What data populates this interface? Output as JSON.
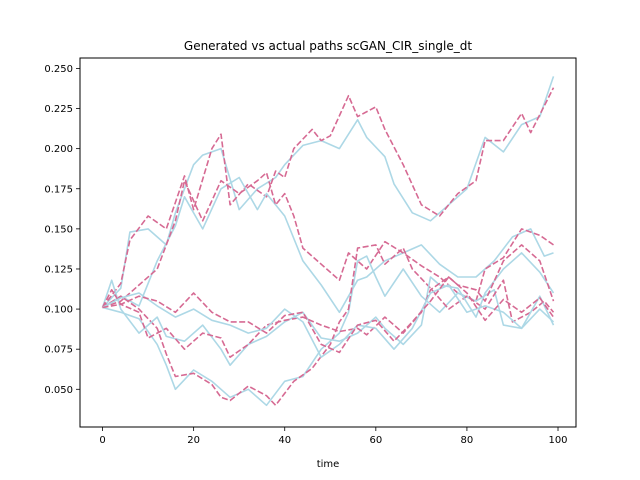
{
  "chart_data": {
    "type": "line",
    "title": "Generated vs actual paths scGAN_CIR_single_dt",
    "xlabel": "time",
    "ylabel": "",
    "xlim": [
      -4.95,
      103.95
    ],
    "ylim": [
      0.0265,
      0.2565
    ],
    "x_ticks": [
      0,
      20,
      40,
      60,
      80,
      100
    ],
    "y_ticks": [
      0.05,
      0.075,
      0.1,
      0.125,
      0.15,
      0.175,
      0.2,
      0.225,
      0.25
    ],
    "x_tick_labels": [
      "0",
      "20",
      "40",
      "60",
      "80",
      "100"
    ],
    "y_tick_labels": [
      "0.050",
      "0.075",
      "0.100",
      "0.125",
      "0.150",
      "0.175",
      "0.200",
      "0.225",
      "0.250"
    ],
    "grid": false,
    "legend": "none",
    "series": [
      {
        "style": "solid",
        "color": "#add8e6",
        "points": [
          [
            0,
            0.101
          ],
          [
            4,
            0.113
          ],
          [
            6,
            0.148
          ],
          [
            10,
            0.15
          ],
          [
            14,
            0.14
          ],
          [
            16,
            0.16
          ],
          [
            20,
            0.19
          ],
          [
            22,
            0.196
          ],
          [
            26,
            0.2
          ],
          [
            30,
            0.162
          ],
          [
            34,
            0.175
          ],
          [
            38,
            0.182
          ],
          [
            40,
            0.19
          ],
          [
            44,
            0.202
          ],
          [
            48,
            0.205
          ],
          [
            52,
            0.2
          ],
          [
            56,
            0.218
          ],
          [
            58,
            0.207
          ],
          [
            62,
            0.195
          ],
          [
            64,
            0.178
          ],
          [
            68,
            0.16
          ],
          [
            72,
            0.155
          ],
          [
            76,
            0.165
          ],
          [
            80,
            0.175
          ],
          [
            84,
            0.207
          ],
          [
            88,
            0.198
          ],
          [
            92,
            0.215
          ],
          [
            96,
            0.22
          ],
          [
            99,
            0.245
          ]
        ]
      },
      {
        "style": "dashed",
        "color": "#d66a93",
        "points": [
          [
            0,
            0.101
          ],
          [
            4,
            0.116
          ],
          [
            6,
            0.143
          ],
          [
            10,
            0.158
          ],
          [
            14,
            0.15
          ],
          [
            18,
            0.183
          ],
          [
            20,
            0.162
          ],
          [
            24,
            0.2
          ],
          [
            26,
            0.209
          ],
          [
            28,
            0.165
          ],
          [
            32,
            0.178
          ],
          [
            36,
            0.17
          ],
          [
            38,
            0.186
          ],
          [
            40,
            0.182
          ],
          [
            42,
            0.2
          ],
          [
            46,
            0.212
          ],
          [
            48,
            0.205
          ],
          [
            50,
            0.208
          ],
          [
            54,
            0.233
          ],
          [
            56,
            0.22
          ],
          [
            60,
            0.226
          ],
          [
            62,
            0.212
          ],
          [
            66,
            0.19
          ],
          [
            70,
            0.165
          ],
          [
            74,
            0.158
          ],
          [
            78,
            0.172
          ],
          [
            82,
            0.18
          ],
          [
            84,
            0.205
          ],
          [
            88,
            0.205
          ],
          [
            92,
            0.222
          ],
          [
            94,
            0.21
          ],
          [
            99,
            0.238
          ]
        ]
      },
      {
        "style": "solid",
        "color": "#add8e6",
        "points": [
          [
            0,
            0.101
          ],
          [
            4,
            0.108
          ],
          [
            8,
            0.102
          ],
          [
            12,
            0.13
          ],
          [
            16,
            0.152
          ],
          [
            18,
            0.17
          ],
          [
            22,
            0.15
          ],
          [
            26,
            0.175
          ],
          [
            30,
            0.182
          ],
          [
            34,
            0.162
          ],
          [
            36,
            0.172
          ],
          [
            40,
            0.158
          ],
          [
            44,
            0.13
          ],
          [
            48,
            0.115
          ],
          [
            52,
            0.098
          ],
          [
            56,
            0.118
          ],
          [
            58,
            0.12
          ],
          [
            62,
            0.13
          ],
          [
            66,
            0.135
          ],
          [
            70,
            0.14
          ],
          [
            74,
            0.128
          ],
          [
            78,
            0.12
          ],
          [
            82,
            0.12
          ],
          [
            86,
            0.13
          ],
          [
            90,
            0.145
          ],
          [
            94,
            0.15
          ],
          [
            97,
            0.133
          ],
          [
            99,
            0.135
          ]
        ]
      },
      {
        "style": "dashed",
        "color": "#d66a93",
        "points": [
          [
            0,
            0.101
          ],
          [
            4,
            0.105
          ],
          [
            8,
            0.115
          ],
          [
            12,
            0.125
          ],
          [
            16,
            0.155
          ],
          [
            18,
            0.18
          ],
          [
            22,
            0.155
          ],
          [
            26,
            0.18
          ],
          [
            30,
            0.172
          ],
          [
            34,
            0.18
          ],
          [
            36,
            0.185
          ],
          [
            38,
            0.165
          ],
          [
            40,
            0.172
          ],
          [
            42,
            0.158
          ],
          [
            44,
            0.138
          ],
          [
            48,
            0.128
          ],
          [
            52,
            0.118
          ],
          [
            54,
            0.135
          ],
          [
            58,
            0.125
          ],
          [
            62,
            0.142
          ],
          [
            66,
            0.135
          ],
          [
            70,
            0.127
          ],
          [
            74,
            0.12
          ],
          [
            78,
            0.11
          ],
          [
            82,
            0.105
          ],
          [
            84,
            0.125
          ],
          [
            88,
            0.132
          ],
          [
            92,
            0.15
          ],
          [
            96,
            0.146
          ],
          [
            99,
            0.14
          ]
        ]
      },
      {
        "style": "solid",
        "color": "#add8e6",
        "points": [
          [
            0,
            0.101
          ],
          [
            4,
            0.098
          ],
          [
            8,
            0.094
          ],
          [
            12,
            0.078
          ],
          [
            14,
            0.065
          ],
          [
            16,
            0.05
          ],
          [
            20,
            0.062
          ],
          [
            24,
            0.055
          ],
          [
            28,
            0.045
          ],
          [
            32,
            0.05
          ],
          [
            36,
            0.04
          ],
          [
            40,
            0.055
          ],
          [
            44,
            0.058
          ],
          [
            48,
            0.075
          ],
          [
            52,
            0.085
          ],
          [
            54,
            0.098
          ],
          [
            56,
            0.13
          ],
          [
            58,
            0.133
          ],
          [
            60,
            0.12
          ],
          [
            62,
            0.108
          ],
          [
            66,
            0.125
          ],
          [
            70,
            0.108
          ],
          [
            74,
            0.098
          ],
          [
            78,
            0.11
          ],
          [
            82,
            0.105
          ],
          [
            86,
            0.112
          ],
          [
            88,
            0.09
          ],
          [
            92,
            0.088
          ],
          [
            96,
            0.1
          ],
          [
            99,
            0.092
          ]
        ]
      },
      {
        "style": "dashed",
        "color": "#d66a93",
        "points": [
          [
            0,
            0.101
          ],
          [
            4,
            0.108
          ],
          [
            8,
            0.1
          ],
          [
            12,
            0.088
          ],
          [
            14,
            0.072
          ],
          [
            16,
            0.058
          ],
          [
            20,
            0.06
          ],
          [
            24,
            0.053
          ],
          [
            26,
            0.045
          ],
          [
            28,
            0.043
          ],
          [
            32,
            0.052
          ],
          [
            36,
            0.046
          ],
          [
            38,
            0.04
          ],
          [
            42,
            0.055
          ],
          [
            46,
            0.063
          ],
          [
            50,
            0.078
          ],
          [
            52,
            0.092
          ],
          [
            54,
            0.1
          ],
          [
            56,
            0.138
          ],
          [
            60,
            0.14
          ],
          [
            62,
            0.128
          ],
          [
            66,
            0.138
          ],
          [
            68,
            0.125
          ],
          [
            72,
            0.113
          ],
          [
            76,
            0.1
          ],
          [
            80,
            0.108
          ],
          [
            84,
            0.1
          ],
          [
            88,
            0.118
          ],
          [
            90,
            0.092
          ],
          [
            94,
            0.098
          ],
          [
            97,
            0.105
          ],
          [
            99,
            0.098
          ]
        ]
      },
      {
        "style": "solid",
        "color": "#add8e6",
        "points": [
          [
            0,
            0.101
          ],
          [
            2,
            0.118
          ],
          [
            4,
            0.1
          ],
          [
            8,
            0.085
          ],
          [
            12,
            0.095
          ],
          [
            14,
            0.083
          ],
          [
            18,
            0.08
          ],
          [
            22,
            0.09
          ],
          [
            26,
            0.075
          ],
          [
            28,
            0.065
          ],
          [
            32,
            0.078
          ],
          [
            36,
            0.083
          ],
          [
            40,
            0.092
          ],
          [
            44,
            0.098
          ],
          [
            48,
            0.082
          ],
          [
            52,
            0.08
          ],
          [
            56,
            0.085
          ],
          [
            60,
            0.095
          ],
          [
            62,
            0.088
          ],
          [
            66,
            0.078
          ],
          [
            70,
            0.09
          ],
          [
            72,
            0.12
          ],
          [
            74,
            0.115
          ],
          [
            78,
            0.113
          ],
          [
            82,
            0.095
          ],
          [
            84,
            0.11
          ],
          [
            88,
            0.125
          ],
          [
            92,
            0.135
          ],
          [
            96,
            0.123
          ],
          [
            99,
            0.11
          ]
        ]
      },
      {
        "style": "dashed",
        "color": "#d66a93",
        "points": [
          [
            0,
            0.101
          ],
          [
            2,
            0.112
          ],
          [
            4,
            0.103
          ],
          [
            8,
            0.098
          ],
          [
            10,
            0.082
          ],
          [
            14,
            0.088
          ],
          [
            18,
            0.075
          ],
          [
            22,
            0.085
          ],
          [
            26,
            0.082
          ],
          [
            28,
            0.07
          ],
          [
            32,
            0.078
          ],
          [
            36,
            0.09
          ],
          [
            40,
            0.093
          ],
          [
            44,
            0.095
          ],
          [
            48,
            0.09
          ],
          [
            52,
            0.086
          ],
          [
            56,
            0.088
          ],
          [
            58,
            0.084
          ],
          [
            62,
            0.095
          ],
          [
            66,
            0.085
          ],
          [
            70,
            0.098
          ],
          [
            72,
            0.112
          ],
          [
            76,
            0.12
          ],
          [
            78,
            0.115
          ],
          [
            82,
            0.112
          ],
          [
            84,
            0.105
          ],
          [
            88,
            0.13
          ],
          [
            92,
            0.14
          ],
          [
            96,
            0.13
          ],
          [
            99,
            0.105
          ]
        ]
      },
      {
        "style": "solid",
        "color": "#add8e6",
        "points": [
          [
            0,
            0.101
          ],
          [
            4,
            0.107
          ],
          [
            8,
            0.11
          ],
          [
            12,
            0.102
          ],
          [
            16,
            0.095
          ],
          [
            20,
            0.1
          ],
          [
            24,
            0.093
          ],
          [
            28,
            0.09
          ],
          [
            32,
            0.085
          ],
          [
            36,
            0.088
          ],
          [
            40,
            0.1
          ],
          [
            44,
            0.092
          ],
          [
            48,
            0.07
          ],
          [
            52,
            0.078
          ],
          [
            56,
            0.09
          ],
          [
            60,
            0.088
          ],
          [
            64,
            0.075
          ],
          [
            68,
            0.088
          ],
          [
            72,
            0.11
          ],
          [
            76,
            0.115
          ],
          [
            80,
            0.098
          ],
          [
            84,
            0.102
          ],
          [
            88,
            0.098
          ],
          [
            92,
            0.088
          ],
          [
            96,
            0.108
          ],
          [
            99,
            0.09
          ]
        ]
      },
      {
        "style": "dashed",
        "color": "#d66a93",
        "points": [
          [
            0,
            0.101
          ],
          [
            4,
            0.103
          ],
          [
            8,
            0.108
          ],
          [
            12,
            0.105
          ],
          [
            16,
            0.098
          ],
          [
            20,
            0.11
          ],
          [
            24,
            0.098
          ],
          [
            28,
            0.092
          ],
          [
            32,
            0.092
          ],
          [
            36,
            0.085
          ],
          [
            40,
            0.096
          ],
          [
            44,
            0.098
          ],
          [
            48,
            0.078
          ],
          [
            52,
            0.073
          ],
          [
            56,
            0.09
          ],
          [
            60,
            0.093
          ],
          [
            64,
            0.08
          ],
          [
            68,
            0.092
          ],
          [
            72,
            0.105
          ],
          [
            76,
            0.12
          ],
          [
            80,
            0.11
          ],
          [
            84,
            0.093
          ],
          [
            88,
            0.106
          ],
          [
            92,
            0.098
          ],
          [
            96,
            0.107
          ],
          [
            99,
            0.095
          ]
        ]
      }
    ]
  }
}
